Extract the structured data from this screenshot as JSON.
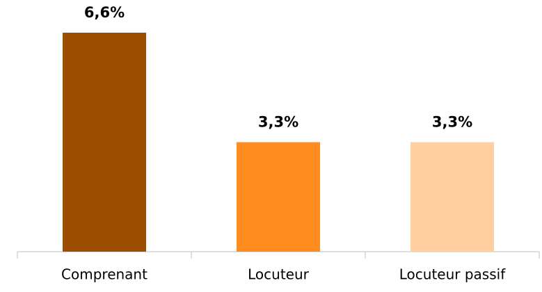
{
  "chart_data": {
    "type": "bar",
    "categories": [
      "Comprenant",
      "Locuteur",
      "Locuteur passif"
    ],
    "values": [
      6.6,
      3.3,
      3.3
    ],
    "value_labels": [
      "6,6%",
      "3,3%",
      "3,3%"
    ],
    "colors": [
      "#9c4f00",
      "#ff8c1e",
      "#ffcf9f"
    ]
  }
}
